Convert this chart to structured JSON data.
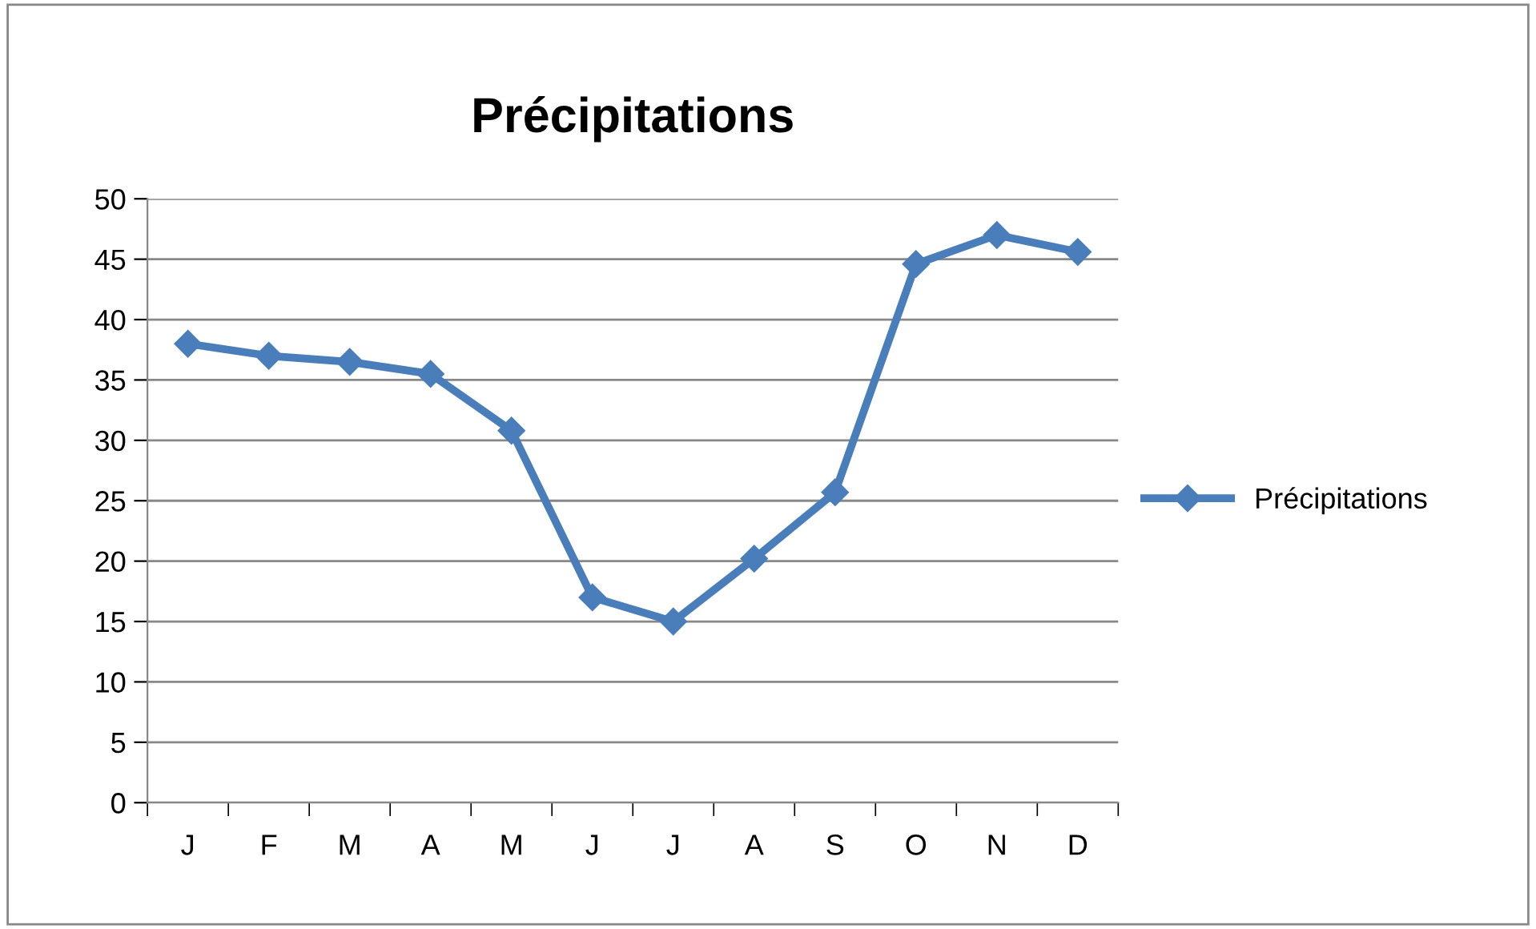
{
  "chart_data": {
    "type": "line",
    "title": "Précipitations",
    "categories": [
      "J",
      "F",
      "M",
      "A",
      "M",
      "J",
      "J",
      "A",
      "S",
      "O",
      "N",
      "D"
    ],
    "series": [
      {
        "name": "Précipitations",
        "color": "#4a7ebb",
        "values": [
          38,
          37,
          36.5,
          35.5,
          30.8,
          17,
          15,
          20.2,
          25.7,
          44.6,
          47,
          45.6
        ]
      }
    ],
    "ylim": [
      0,
      50
    ],
    "yticks": [
      0,
      5,
      10,
      15,
      20,
      25,
      30,
      35,
      40,
      45,
      50
    ],
    "grid": "y",
    "legend": "right",
    "marker": "diamond",
    "line_style": "solid"
  }
}
